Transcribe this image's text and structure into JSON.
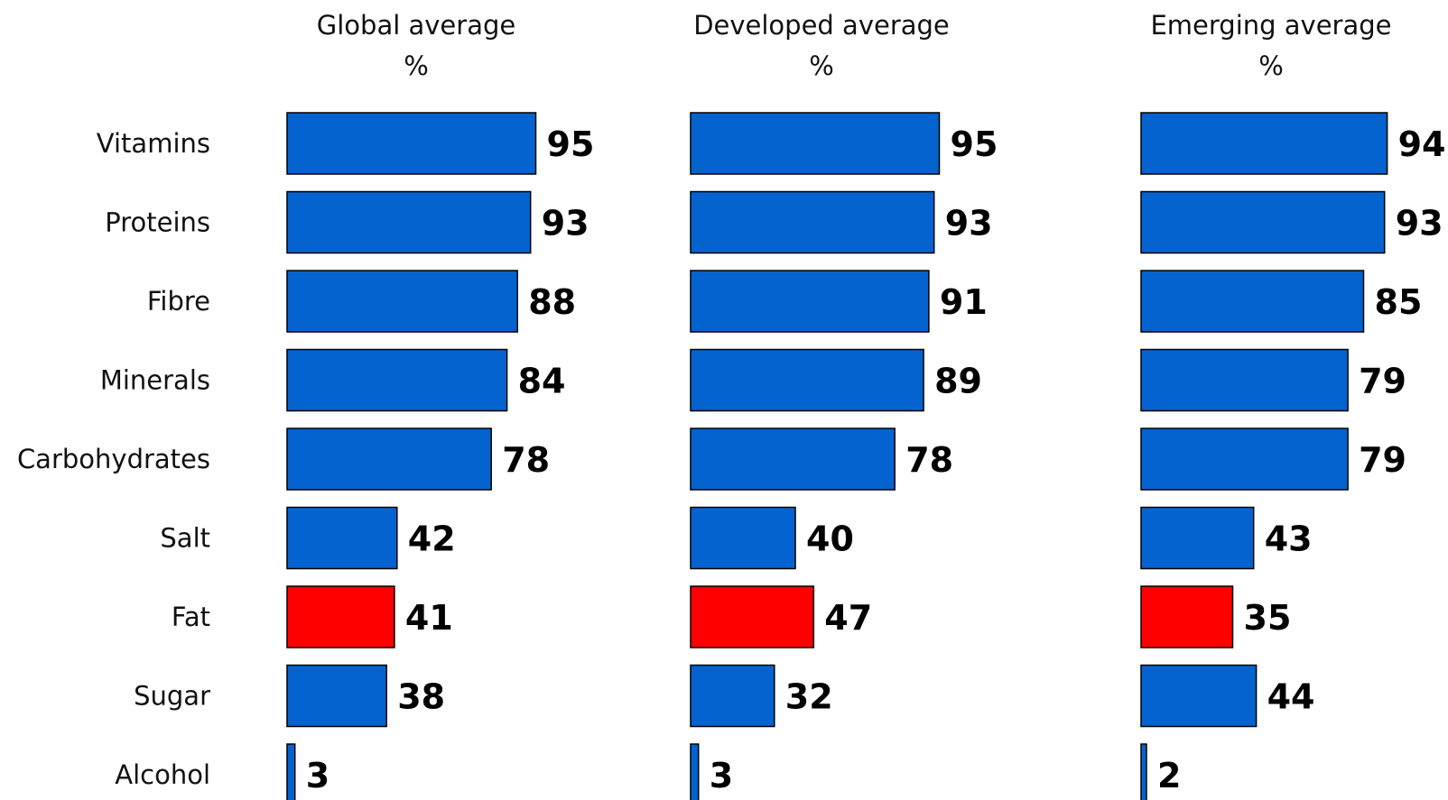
{
  "chart_data": {
    "type": "bar",
    "orientation": "horizontal",
    "categories": [
      "Vitamins",
      "Proteins",
      "Fibre",
      "Minerals",
      "Carbohydrates",
      "Salt",
      "Fat",
      "Sugar",
      "Alcohol"
    ],
    "panels": [
      {
        "title": "Global average",
        "unit": "%",
        "values": [
          95,
          93,
          88,
          84,
          78,
          42,
          41,
          38,
          3
        ]
      },
      {
        "title": "Developed average",
        "unit": "%",
        "values": [
          95,
          93,
          91,
          89,
          78,
          40,
          47,
          32,
          3
        ]
      },
      {
        "title": "Emerging average",
        "unit": "%",
        "values": [
          94,
          93,
          85,
          79,
          79,
          43,
          35,
          44,
          2
        ]
      }
    ],
    "xlim": [
      0,
      100
    ],
    "grid": false,
    "legend": "none",
    "colors": {
      "default_bar": "#0563D0",
      "highlight_bar": "#FF0000",
      "highlight_category": "Fat",
      "bar_outline": "#000000"
    }
  }
}
